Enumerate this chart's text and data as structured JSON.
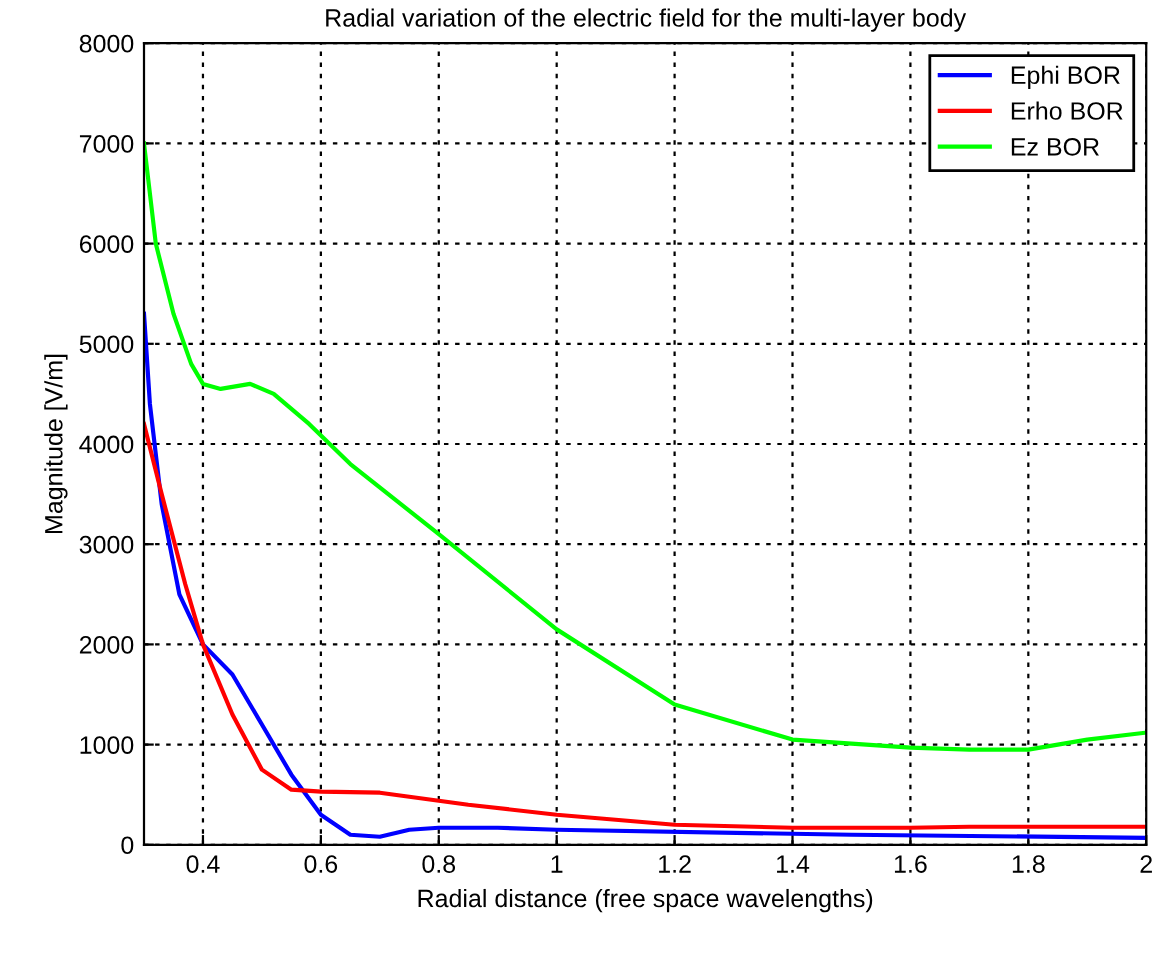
{
  "chart_data": {
    "type": "line",
    "title": "Radial variation of the electric field for the multi-layer body",
    "xlabel": "Radial distance (free space wavelengths)",
    "ylabel": "Magnitude [V/m]",
    "xlim": [
      0.3,
      2.0
    ],
    "xticks": [
      0.4,
      0.6,
      0.8,
      1,
      1.2,
      1.4,
      1.6,
      1.8,
      2
    ],
    "ylim": [
      0,
      8000
    ],
    "yticks": [
      0,
      1000,
      2000,
      3000,
      4000,
      5000,
      6000,
      7000,
      8000
    ],
    "grid": true,
    "legend": "top right",
    "series": [
      {
        "name": "Ephi BOR",
        "color": "#0000ff",
        "x": [
          0.3,
          0.31,
          0.33,
          0.36,
          0.4,
          0.45,
          0.5,
          0.55,
          0.6,
          0.65,
          0.7,
          0.75,
          0.8,
          0.9,
          1.0,
          1.5,
          2.0
        ],
        "values": [
          5300,
          4400,
          3400,
          2500,
          2000,
          1700,
          1200,
          700,
          300,
          100,
          80,
          150,
          170,
          170,
          150,
          100,
          70
        ]
      },
      {
        "name": "Erho BOR",
        "color": "#ff0000",
        "x": [
          0.3,
          0.33,
          0.37,
          0.4,
          0.45,
          0.5,
          0.55,
          0.6,
          0.7,
          0.75,
          0.85,
          1.0,
          1.2,
          1.4,
          1.6,
          1.7,
          2.0
        ],
        "values": [
          4200,
          3500,
          2600,
          2000,
          1300,
          750,
          550,
          530,
          520,
          480,
          400,
          300,
          200,
          170,
          170,
          180,
          180
        ]
      },
      {
        "name": "Ez BOR",
        "color": "#00ff00",
        "x": [
          0.3,
          0.32,
          0.35,
          0.38,
          0.4,
          0.43,
          0.48,
          0.52,
          0.58,
          0.65,
          0.8,
          1.0,
          1.2,
          1.4,
          1.6,
          1.7,
          1.8,
          1.9,
          2.0
        ],
        "values": [
          7000,
          6000,
          5300,
          4800,
          4600,
          4550,
          4600,
          4500,
          4200,
          3800,
          3100,
          2150,
          1400,
          1050,
          970,
          950,
          950,
          1050,
          1120
        ]
      }
    ]
  }
}
